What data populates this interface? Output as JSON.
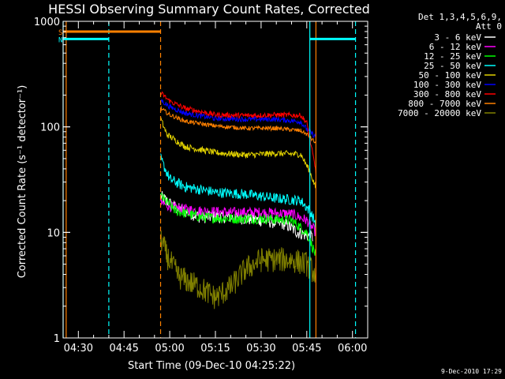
{
  "chart_data": {
    "type": "line",
    "title": "HESSI Observing Summary Count Rates, Corrected",
    "xlabel": "Start Time (09-Dec-10 04:25:22)",
    "ylabel": "Corrected Count Rate (s⁻¹ detector⁻¹)",
    "yscale": "log",
    "ylim": [
      1,
      1000
    ],
    "y_ticks": [
      "1",
      "10",
      "100",
      "1000"
    ],
    "xlim": [
      "04:25",
      "06:05"
    ],
    "x_ticks": [
      "04:30",
      "04:45",
      "05:00",
      "05:15",
      "05:30",
      "05:45",
      "06:00"
    ],
    "legend_header": [
      "Det 1,3,4,5,6,9,",
      "Att 0"
    ],
    "legend_position": "right",
    "date_stamp": "9-Dec-2010 17:29",
    "flags": [
      {
        "label": "S",
        "color": "#ff8000",
        "start": "04:25",
        "end": "04:57",
        "level": 800
      },
      {
        "label": "N",
        "color": "#00ffff",
        "start": "04:25",
        "end": "04:40",
        "level": 680
      },
      {
        "label": "",
        "color": "#00ffff",
        "start": "05:46",
        "end": "06:01",
        "level": 680
      }
    ],
    "vlines": [
      {
        "time": "04:26",
        "color": "#ff8000",
        "style": "solid"
      },
      {
        "time": "04:25",
        "color": "#00ffff",
        "style": "solid"
      },
      {
        "time": "04:40",
        "color": "#00ffff",
        "style": "dashed"
      },
      {
        "time": "04:57",
        "color": "#ff8000",
        "style": "dashed"
      },
      {
        "time": "05:46",
        "color": "#00ffff",
        "style": "solid"
      },
      {
        "time": "05:48",
        "color": "#ff8000",
        "style": "solid"
      },
      {
        "time": "06:01",
        "color": "#00ffff",
        "style": "dashed"
      }
    ],
    "series": [
      {
        "name": "3 - 6 keV",
        "color": "#ffffff",
        "noise": 0.06,
        "points": [
          [
            "04:57",
            22
          ],
          [
            "05:02",
            17
          ],
          [
            "05:10",
            14
          ],
          [
            "05:20",
            14
          ],
          [
            "05:30",
            13
          ],
          [
            "05:38",
            12
          ],
          [
            "05:42",
            10
          ],
          [
            "05:47",
            9
          ]
        ]
      },
      {
        "name": "6 - 12 keV",
        "color": "#ff00ff",
        "noise": 0.05,
        "points": [
          [
            "04:57",
            19
          ],
          [
            "05:02",
            17
          ],
          [
            "05:10",
            16
          ],
          [
            "05:20",
            15.5
          ],
          [
            "05:30",
            15.5
          ],
          [
            "05:40",
            15
          ],
          [
            "05:45",
            13
          ],
          [
            "05:48",
            10
          ]
        ]
      },
      {
        "name": "12 - 25 keV",
        "color": "#00ff00",
        "noise": 0.05,
        "points": [
          [
            "04:57",
            22
          ],
          [
            "05:02",
            16
          ],
          [
            "05:10",
            14
          ],
          [
            "05:20",
            13.5
          ],
          [
            "05:30",
            13.5
          ],
          [
            "05:40",
            13
          ],
          [
            "05:45",
            10
          ],
          [
            "05:48",
            6
          ]
        ]
      },
      {
        "name": "25 - 50 keV",
        "color": "#00ffff",
        "noise": 0.05,
        "points": [
          [
            "04:57",
            50
          ],
          [
            "05:00",
            32
          ],
          [
            "05:05",
            27
          ],
          [
            "05:15",
            24
          ],
          [
            "05:25",
            23
          ],
          [
            "05:35",
            21
          ],
          [
            "05:43",
            20
          ],
          [
            "05:46",
            16
          ],
          [
            "05:48",
            12
          ]
        ]
      },
      {
        "name": "50 - 100 keV",
        "color": "#e0d000",
        "noise": 0.03,
        "points": [
          [
            "04:57",
            120
          ],
          [
            "04:59",
            85
          ],
          [
            "05:05",
            65
          ],
          [
            "05:15",
            57
          ],
          [
            "05:25",
            54
          ],
          [
            "05:35",
            56
          ],
          [
            "05:43",
            55
          ],
          [
            "05:46",
            38
          ],
          [
            "05:48",
            26
          ]
        ]
      },
      {
        "name": "100 - 300 keV",
        "color": "#0000ff",
        "noise": 0.025,
        "points": [
          [
            "04:57",
            180
          ],
          [
            "05:00",
            155
          ],
          [
            "05:05",
            135
          ],
          [
            "05:15",
            120
          ],
          [
            "05:25",
            118
          ],
          [
            "05:35",
            118
          ],
          [
            "05:43",
            112
          ],
          [
            "05:45",
            95
          ],
          [
            "05:48",
            80
          ]
        ]
      },
      {
        "name": "300 - 800 keV",
        "color": "#ff0000",
        "noise": 0.025,
        "points": [
          [
            "04:57",
            210
          ],
          [
            "05:00",
            175
          ],
          [
            "05:05",
            150
          ],
          [
            "05:15",
            130
          ],
          [
            "05:25",
            128
          ],
          [
            "05:35",
            130
          ],
          [
            "05:43",
            128
          ],
          [
            "05:45",
            110
          ],
          [
            "05:48",
            38
          ]
        ]
      },
      {
        "name": "800 - 7000 keV",
        "color": "#ff8000",
        "noise": 0.02,
        "points": [
          [
            "04:57",
            150
          ],
          [
            "05:00",
            130
          ],
          [
            "05:05",
            113
          ],
          [
            "05:15",
            102
          ],
          [
            "05:25",
            97
          ],
          [
            "05:35",
            97
          ],
          [
            "05:43",
            92
          ],
          [
            "05:45",
            85
          ],
          [
            "05:48",
            70
          ]
        ]
      },
      {
        "name": "7000 - 20000 keV",
        "color": "#808000",
        "noise": 0.12,
        "points": [
          [
            "04:57",
            9
          ],
          [
            "04:59",
            6
          ],
          [
            "05:03",
            3.8
          ],
          [
            "05:10",
            3
          ],
          [
            "05:15",
            2.4
          ],
          [
            "05:20",
            3
          ],
          [
            "05:25",
            4.5
          ],
          [
            "05:30",
            5.5
          ],
          [
            "05:40",
            5.5
          ],
          [
            "05:45",
            5
          ],
          [
            "05:48",
            4
          ]
        ]
      }
    ]
  }
}
